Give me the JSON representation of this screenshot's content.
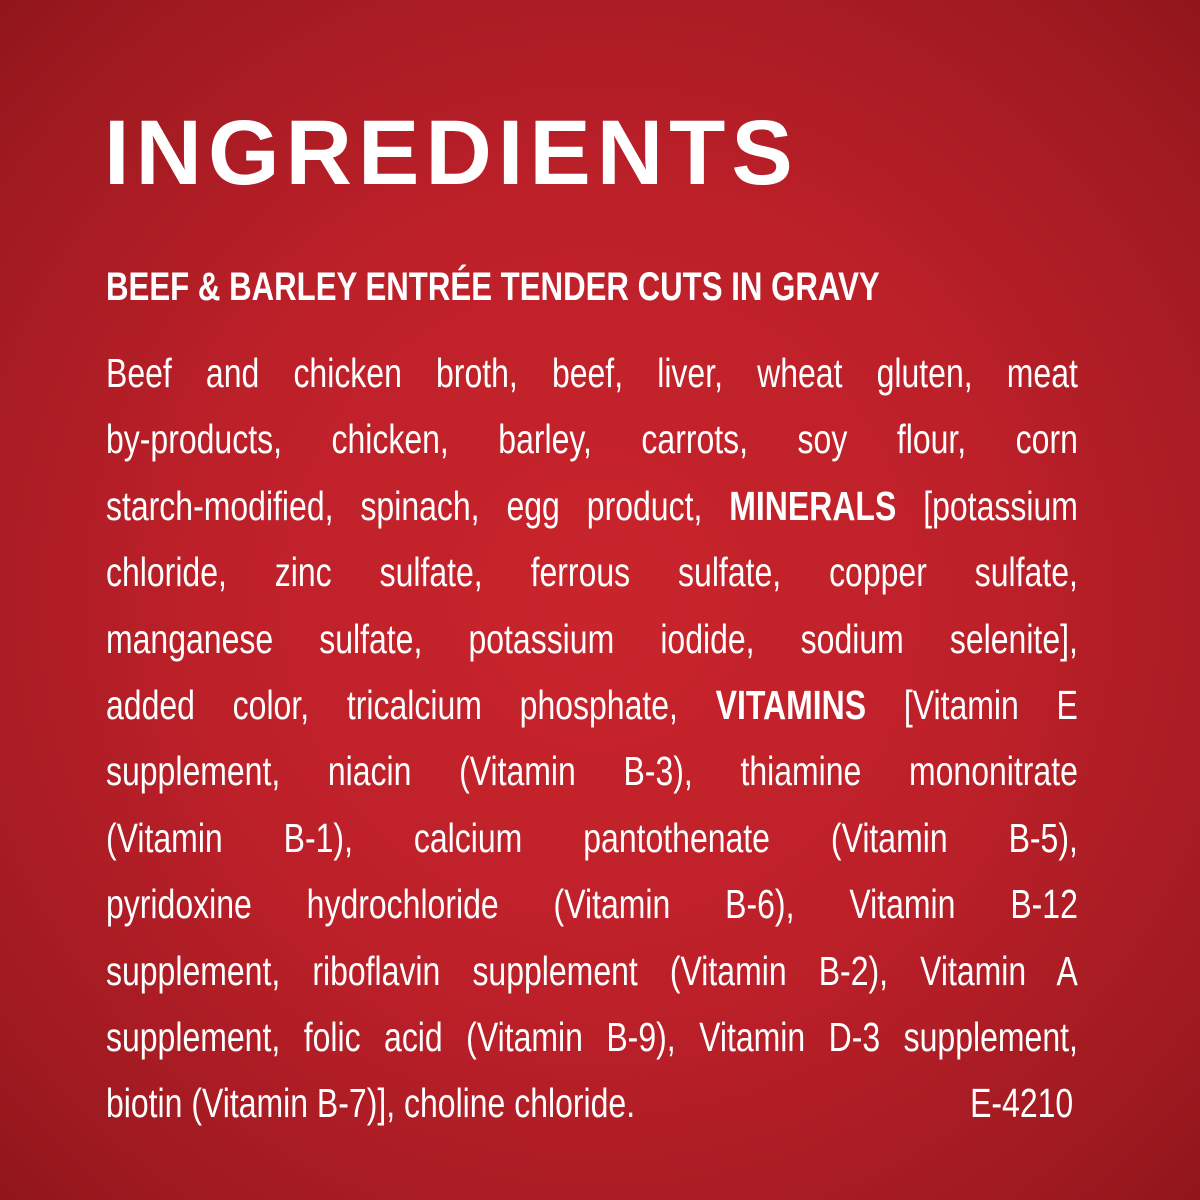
{
  "title": "INGREDIENTS",
  "subtitle": "BEEF & BARLEY ENTRÉE TENDER CUTS IN GRAVY",
  "lines": [
    [
      {
        "t": "Beef and chicken broth, beef, liver, wheat gluten, meat"
      }
    ],
    [
      {
        "t": "by-products, chicken, barley, carrots, soy flour, corn"
      }
    ],
    [
      {
        "t": "starch-modified, spinach, egg product, "
      },
      {
        "t": "MINERALS",
        "b": true
      },
      {
        "t": " [potassium"
      }
    ],
    [
      {
        "t": "chloride, zinc sulfate, ferrous sulfate, copper sulfate,"
      }
    ],
    [
      {
        "t": "manganese sulfate, potassium iodide, sodium selenite],"
      }
    ],
    [
      {
        "t": "added color, tricalcium phosphate, "
      },
      {
        "t": "VITAMINS",
        "b": true
      },
      {
        "t": " [Vitamin E"
      }
    ],
    [
      {
        "t": "supplement, niacin (Vitamin B-3), thiamine mononitrate"
      }
    ],
    [
      {
        "t": "(Vitamin B-1), calcium pantothenate (Vitamin B-5),"
      }
    ],
    [
      {
        "t": "pyridoxine hydrochloride (Vitamin B-6), Vitamin B-12"
      }
    ],
    [
      {
        "t": "supplement, riboflavin supplement (Vitamin B-2), Vitamin A"
      }
    ],
    [
      {
        "t": "supplement, folic acid (Vitamin B-9), Vitamin D-3 supplement,"
      }
    ]
  ],
  "last_line": "biotin (Vitamin B-7)], choline chloride.",
  "code": "E-4210",
  "colors": {
    "background": "#c0212a",
    "text": "#ffffff"
  }
}
